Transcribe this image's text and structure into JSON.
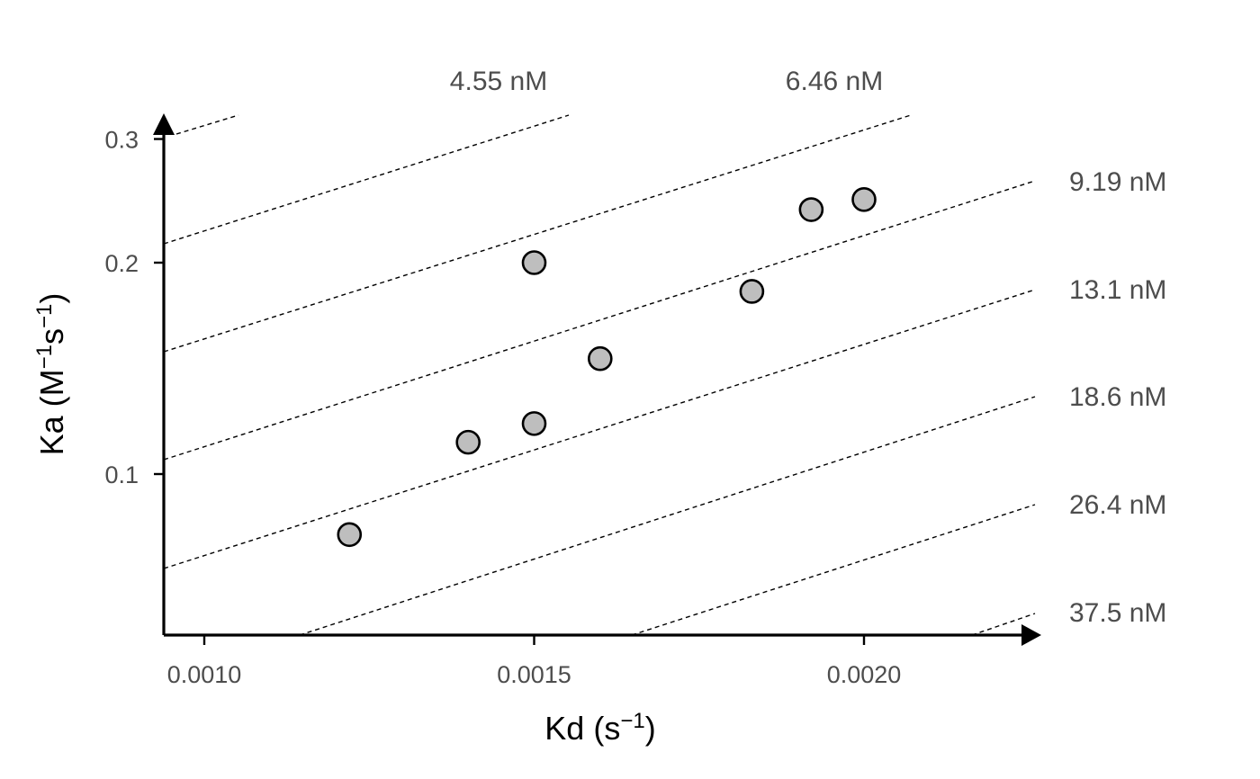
{
  "chart_data": {
    "type": "scatter",
    "xlabel": "Kd (s",
    "xlabel_sup": "−1",
    "xlabel_close": ")",
    "ylabel": "Ka (M",
    "ylabel_sup1": "−1",
    "ylabel_mid": "s",
    "ylabel_sup2": "−1",
    "ylabel_close": ")",
    "y_scale": "log",
    "xlim": [
      0.00095,
      0.00225
    ],
    "ylim": [
      0.068,
      0.305
    ],
    "x_ticks": [
      {
        "value": 0.001,
        "label": "0.0010"
      },
      {
        "value": 0.0015,
        "label": "0.0015"
      },
      {
        "value": 0.002,
        "label": "0.0020"
      }
    ],
    "y_ticks": [
      {
        "value": 0.1,
        "label": "0.1"
      },
      {
        "value": 0.2,
        "label": "0.2"
      },
      {
        "value": 0.3,
        "label": "0.3"
      }
    ],
    "points": [
      {
        "x": 0.00122,
        "y": 0.082
      },
      {
        "x": 0.0014,
        "y": 0.111
      },
      {
        "x": 0.0015,
        "y": 0.118
      },
      {
        "x": 0.0015,
        "y": 0.2
      },
      {
        "x": 0.0016,
        "y": 0.146
      },
      {
        "x": 0.00183,
        "y": 0.182
      },
      {
        "x": 0.00192,
        "y": 0.238
      },
      {
        "x": 0.002,
        "y": 0.246
      }
    ],
    "iso_lines": [
      {
        "label": "4.55 nM",
        "label_position": "top"
      },
      {
        "label": "6.46 nM",
        "label_position": "top"
      },
      {
        "label": "9.19 nM",
        "label_position": "right"
      },
      {
        "label": "13.1 nM",
        "label_position": "right"
      },
      {
        "label": "18.6 nM",
        "label_position": "right"
      },
      {
        "label": "26.4 nM",
        "label_position": "right"
      },
      {
        "label": "37.5 nM",
        "label_position": "right"
      }
    ],
    "grid": false,
    "legend": "none"
  }
}
